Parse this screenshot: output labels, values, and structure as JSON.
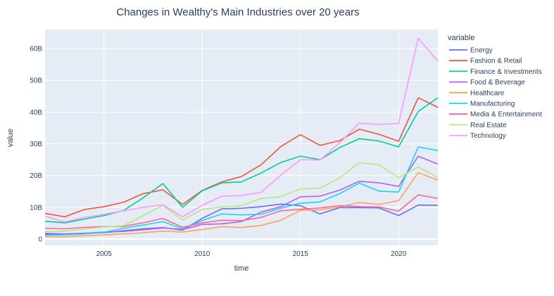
{
  "chart_data": {
    "type": "line",
    "title": "Changes in Wealthy's Main Industries over 20 years",
    "xlabel": "time",
    "ylabel": "value",
    "legend_title": "variable",
    "legend_position": "right",
    "grid": true,
    "xlim": [
      2002,
      2022
    ],
    "ylim": [
      -2,
      66
    ],
    "x_ticks": [
      2005,
      2010,
      2015,
      2020
    ],
    "y_ticks": [
      0,
      10,
      20,
      30,
      40,
      50,
      60
    ],
    "y_tick_labels": [
      "0",
      "10B",
      "20B",
      "30B",
      "40B",
      "50B",
      "60B"
    ],
    "x": [
      2002,
      2003,
      2004,
      2005,
      2006,
      2007,
      2008,
      2009,
      2010,
      2011,
      2012,
      2013,
      2014,
      2015,
      2016,
      2017,
      2018,
      2019,
      2020,
      2021,
      2022
    ],
    "series": [
      {
        "name": "Energy",
        "color": "#636efa",
        "values": [
          1.5,
          1.6,
          1.8,
          2.0,
          2.6,
          3.2,
          3.6,
          2.8,
          6.5,
          9.5,
          9.7,
          10.2,
          11.0,
          10.5,
          7.9,
          9.9,
          9.9,
          9.8,
          7.4,
          10.7,
          10.6
        ]
      },
      {
        "name": "Fashion & Retail",
        "color": "#ef553b",
        "values": [
          8.1,
          7.0,
          9.3,
          10.2,
          11.6,
          14.3,
          15.5,
          10.9,
          15.3,
          18.0,
          19.7,
          23.4,
          29.1,
          32.9,
          29.5,
          31.0,
          34.6,
          33.0,
          30.8,
          44.5,
          41.5
        ]
      },
      {
        "name": "Finance & Investments",
        "color": "#00cc96",
        "values": [
          5.6,
          5.1,
          6.3,
          7.4,
          9.0,
          13.0,
          17.5,
          10.0,
          15.2,
          17.7,
          18.0,
          20.8,
          24.1,
          26.1,
          25.0,
          28.8,
          31.6,
          30.9,
          29.0,
          40.2,
          44.5
        ]
      },
      {
        "name": "Food & Beverage",
        "color": "#ab63fa",
        "values": [
          1.8,
          1.6,
          1.8,
          2.2,
          2.4,
          2.9,
          3.5,
          3.0,
          4.6,
          4.8,
          5.5,
          8.5,
          10.2,
          13.3,
          13.5,
          15.4,
          18.2,
          17.7,
          16.6,
          26.1,
          23.6
        ]
      },
      {
        "name": "Healthcare",
        "color": "#ffa15a",
        "values": [
          0.7,
          0.7,
          1.0,
          1.3,
          1.6,
          2.0,
          2.5,
          2.2,
          3.0,
          3.9,
          3.6,
          4.3,
          5.9,
          9.0,
          9.2,
          10.1,
          11.5,
          10.9,
          12.1,
          20.9,
          18.6
        ]
      },
      {
        "name": "Manufacturing",
        "color": "#19d3f3",
        "values": [
          1.2,
          1.3,
          1.6,
          2.1,
          3.4,
          4.4,
          5.5,
          3.2,
          5.8,
          7.9,
          7.6,
          7.8,
          9.7,
          11.3,
          11.7,
          14.3,
          17.6,
          15.1,
          14.8,
          29.0,
          27.9
        ]
      },
      {
        "name": "Media & Entertainment",
        "color": "#ff6692",
        "values": [
          3.4,
          3.2,
          3.7,
          3.9,
          4.0,
          5.1,
          6.5,
          3.7,
          5.1,
          5.9,
          5.8,
          6.8,
          8.9,
          9.4,
          9.8,
          10.5,
          10.2,
          10.1,
          8.8,
          13.9,
          12.8
        ]
      },
      {
        "name": "Real Estate",
        "color": "#b6e880",
        "values": [
          2.4,
          2.4,
          3.2,
          3.8,
          4.2,
          7.4,
          10.6,
          6.0,
          9.3,
          10.1,
          10.5,
          12.8,
          13.3,
          15.8,
          16.0,
          19.3,
          24.0,
          23.4,
          19.3,
          22.7,
          19.4
        ]
      },
      {
        "name": "Technology",
        "color": "#ff97ff",
        "values": [
          7.2,
          5.4,
          6.8,
          7.8,
          8.9,
          10.0,
          10.8,
          7.0,
          10.6,
          13.5,
          13.7,
          14.7,
          20.1,
          25.0,
          24.9,
          30.3,
          36.5,
          36.1,
          36.4,
          63.3,
          56.0
        ]
      }
    ]
  }
}
